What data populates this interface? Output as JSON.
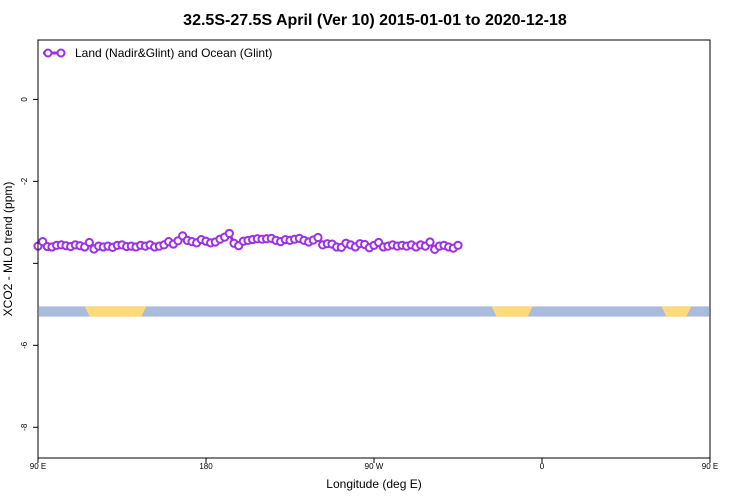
{
  "chart_data": {
    "type": "line",
    "title": "32.5S-27.5S April (Ver 10)   2015-01-01 to 2020-12-18",
    "xlabel": "Longitude (deg E)",
    "ylabel": "XCO2 - MLO trend (ppm)",
    "xlim": [
      90,
      450
    ],
    "ylim": [
      -8.75,
      1.45
    ],
    "x_ticks": [
      {
        "value": 90,
        "label": "90 E"
      },
      {
        "value": 180,
        "label": "180"
      },
      {
        "value": 270,
        "label": "90 W"
      },
      {
        "value": 360,
        "label": "0"
      },
      {
        "value": 450,
        "label": "90 E"
      }
    ],
    "x_ticks_extra": [
      {
        "value": 540,
        "label": "180"
      }
    ],
    "y_ticks": [
      0,
      -2,
      -4,
      -6,
      -8
    ],
    "y_tick_labels": [
      "0",
      "-2",
      "",
      "-6",
      "-8"
    ],
    "grid": false,
    "legend": {
      "position": "top-left",
      "entries": [
        "Land (Nadir&Glint) and Ocean (Glint)"
      ]
    },
    "colors": {
      "series": "#9b30e6",
      "ocean": "#a9bcdb",
      "land": "#ffd97a"
    },
    "surface_band": {
      "y_range": [
        -5.3,
        -5.05
      ],
      "land_segments": [
        [
          115,
          148
        ],
        [
          333,
          355
        ],
        [
          424,
          440
        ],
        [
          542,
          585
        ]
      ]
    },
    "series": [
      {
        "name": "Land (Nadir&Glint) and Ocean (Glint)",
        "step": 2.5,
        "x_start": 90,
        "values": [
          -3.58,
          -3.47,
          -3.59,
          -3.6,
          -3.56,
          -3.55,
          -3.57,
          -3.59,
          -3.55,
          -3.57,
          -3.6,
          -3.49,
          -3.65,
          -3.58,
          -3.6,
          -3.58,
          -3.61,
          -3.56,
          -3.55,
          -3.59,
          -3.58,
          -3.6,
          -3.56,
          -3.58,
          -3.55,
          -3.6,
          -3.58,
          -3.55,
          -3.47,
          -3.53,
          -3.45,
          -3.33,
          -3.44,
          -3.47,
          -3.5,
          -3.42,
          -3.46,
          -3.5,
          -3.48,
          -3.41,
          -3.36,
          -3.27,
          -3.51,
          -3.57,
          -3.46,
          -3.44,
          -3.42,
          -3.4,
          -3.41,
          -3.4,
          -3.39,
          -3.44,
          -3.47,
          -3.42,
          -3.44,
          -3.41,
          -3.39,
          -3.44,
          -3.48,
          -3.43,
          -3.37,
          -3.55,
          -3.52,
          -3.53,
          -3.6,
          -3.61,
          -3.51,
          -3.55,
          -3.6,
          -3.52,
          -3.54,
          -3.62,
          -3.56,
          -3.49,
          -3.6,
          -3.58,
          -3.55,
          -3.58,
          -3.56,
          -3.58,
          -3.55,
          -3.6,
          -3.55,
          -3.58,
          -3.48,
          -3.66,
          -3.58,
          -3.56,
          -3.6,
          -3.63,
          -3.56
        ]
      }
    ]
  }
}
